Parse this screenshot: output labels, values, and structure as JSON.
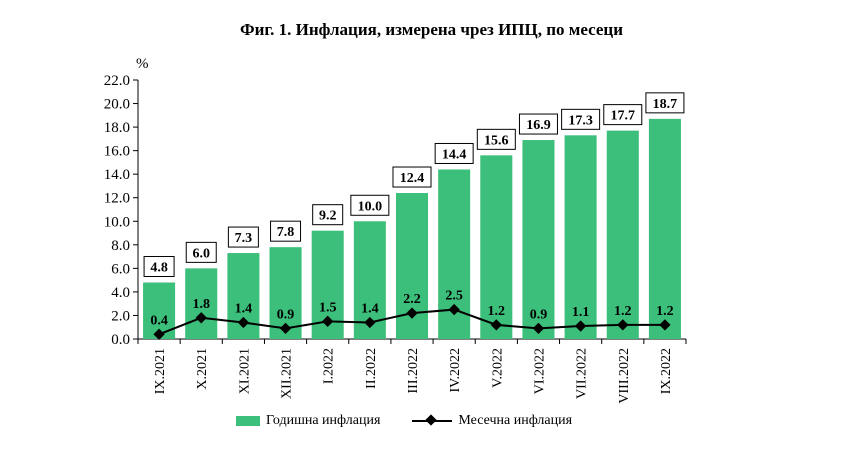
{
  "chart_data": {
    "type": "bar",
    "title": "Фиг. 1. Инфлация, измерена чрез ИПЦ, по месеци",
    "ylabel": "%",
    "ylim": [
      0,
      22
    ],
    "yticks": [
      "0.0",
      "2.0",
      "4.0",
      "6.0",
      "8.0",
      "10.0",
      "12.0",
      "14.0",
      "16.0",
      "18.0",
      "20.0",
      "22.0"
    ],
    "categories": [
      "IX.2021",
      "X.2021",
      "XI.2021",
      "XII.2021",
      "I.2022",
      "II.2022",
      "III.2022",
      "IV.2022",
      "V.2022",
      "VI.2022",
      "VII.2022",
      "VIII.2022",
      "IX.2022"
    ],
    "series": [
      {
        "name": "Годишна инфлация",
        "kind": "bar",
        "color": "#3cbf7a",
        "values": [
          4.8,
          6.0,
          7.3,
          7.8,
          9.2,
          10.0,
          12.4,
          14.4,
          15.6,
          16.9,
          17.3,
          17.7,
          18.7
        ],
        "labels": [
          "4.8",
          "6.0",
          "7.3",
          "7.8",
          "9.2",
          "10.0",
          "12.4",
          "14.4",
          "15.6",
          "16.9",
          "17.3",
          "17.7",
          "18.7"
        ]
      },
      {
        "name": "Месечна инфлация",
        "kind": "line",
        "color": "#000000",
        "values": [
          0.4,
          1.8,
          1.4,
          0.9,
          1.5,
          1.4,
          2.2,
          2.5,
          1.2,
          0.9,
          1.1,
          1.2,
          1.2
        ],
        "labels": [
          "0.4",
          "1.8",
          "1.4",
          "0.9",
          "1.5",
          "1.4",
          "2.2",
          "2.5",
          "1.2",
          "0.9",
          "1.1",
          "1.2",
          "1.2"
        ]
      }
    ],
    "grid": false,
    "legend": "bottom"
  }
}
